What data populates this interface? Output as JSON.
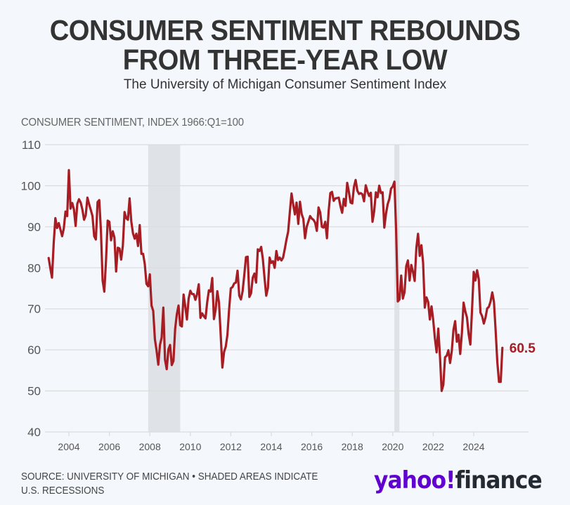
{
  "header": {
    "title_line1": "CONSUMER SENTIMENT REBOUNDS",
    "title_line2": "FROM THREE-YEAR LOW",
    "subtitle": "The University of Michigan Consumer Sentiment Index"
  },
  "footer": {
    "source_line1": "SOURCE: UNIVERSITY OF MICHIGAN • SHADED AREAS INDICATE",
    "source_line2": "U.S. RECESSIONS",
    "logo_yahoo": "yahoo",
    "logo_bang": "!",
    "logo_finance": "finance"
  },
  "colors": {
    "line": "#a61d24",
    "recession": "#dfe3e8",
    "grid": "#dcdcdc",
    "background": "#f4f7fb",
    "brand_purple": "#6001d2"
  },
  "chart_data": {
    "type": "line",
    "title": "CONSUMER SENTIMENT REBOUNDS FROM THREE-YEAR LOW",
    "subtitle": "The University of Michigan Consumer Sentiment Index",
    "ylabel": "CONSUMER SENTIMENT, INDEX 1966:Q1=100",
    "xlabel": "",
    "ylim": [
      40,
      110
    ],
    "yticks": [
      40,
      50,
      60,
      70,
      80,
      90,
      100,
      110
    ],
    "xlim": [
      2003.0,
      2025.7
    ],
    "xticks": [
      2004,
      2006,
      2008,
      2010,
      2012,
      2014,
      2016,
      2018,
      2020,
      2022,
      2024
    ],
    "grid": "horizontal",
    "start": "2003-01",
    "frequency": "monthly",
    "end_label": "60.5",
    "recessions": [
      {
        "start": 2007.92,
        "end": 2009.5
      },
      {
        "start": 2020.08,
        "end": 2020.33
      }
    ],
    "series": [
      {
        "name": "Consumer Sentiment Index",
        "values": [
          82.4,
          79.9,
          77.6,
          86.0,
          92.1,
          89.7,
          90.9,
          89.3,
          87.7,
          89.6,
          93.7,
          92.6,
          103.8,
          94.4,
          95.8,
          94.2,
          90.2,
          95.6,
          96.7,
          95.9,
          94.2,
          91.7,
          92.8,
          97.1,
          95.5,
          94.1,
          92.6,
          87.7,
          86.9,
          96.0,
          96.5,
          89.1,
          76.9,
          74.2,
          81.6,
          91.5,
          91.2,
          86.7,
          88.9,
          87.4,
          79.1,
          84.9,
          84.7,
          82.0,
          85.4,
          93.6,
          92.1,
          91.7,
          96.9,
          91.3,
          88.4,
          87.1,
          88.3,
          85.3,
          90.4,
          83.4,
          83.4,
          80.9,
          76.1,
          75.5,
          78.4,
          70.8,
          69.5,
          62.6,
          59.8,
          56.4,
          61.2,
          63.0,
          70.3,
          57.6,
          55.3,
          60.1,
          61.2,
          56.3,
          57.3,
          65.1,
          68.7,
          70.8,
          66.0,
          65.7,
          73.5,
          70.6,
          67.4,
          72.5,
          74.4,
          73.6,
          73.6,
          72.2,
          73.6,
          76.0,
          67.8,
          68.9,
          68.2,
          67.7,
          71.6,
          74.5,
          74.2,
          77.5,
          67.5,
          69.8,
          74.3,
          71.5,
          63.7,
          55.7,
          59.5,
          60.8,
          63.7,
          69.9,
          75.0,
          75.3,
          76.2,
          76.4,
          79.3,
          73.2,
          72.3,
          74.3,
          78.3,
          82.6,
          82.7,
          72.9,
          73.8,
          77.6,
          78.6,
          76.4,
          84.5,
          84.1,
          85.1,
          82.1,
          77.5,
          73.2,
          75.1,
          82.5,
          81.2,
          81.6,
          80.0,
          84.1,
          81.9,
          82.5,
          81.8,
          82.5,
          84.6,
          86.9,
          88.8,
          93.6,
          98.1,
          95.4,
          93.0,
          95.9,
          90.7,
          96.1,
          93.1,
          91.9,
          87.2,
          90.0,
          91.3,
          92.6,
          92.0,
          91.7,
          91.0,
          89.0,
          94.7,
          93.5,
          90.0,
          89.8,
          91.2,
          87.2,
          93.8,
          98.2,
          98.5,
          96.3,
          96.9,
          97.0,
          97.1,
          95.0,
          93.4,
          96.8,
          95.1,
          100.7,
          98.5,
          95.9,
          95.7,
          99.7,
          101.4,
          98.8,
          98.0,
          98.2,
          97.9,
          96.2,
          100.1,
          98.6,
          97.5,
          98.3,
          91.2,
          93.8,
          98.4,
          97.2,
          100.0,
          98.2,
          98.4,
          89.8,
          93.2,
          95.5,
          96.8,
          99.3,
          99.8,
          101.0,
          89.1,
          71.8,
          72.3,
          78.1,
          72.5,
          74.1,
          80.4,
          81.8,
          76.9,
          80.7,
          79.0,
          76.8,
          84.9,
          88.3,
          82.9,
          85.5,
          81.2,
          70.3,
          72.8,
          71.7,
          67.4,
          70.6,
          67.2,
          62.8,
          59.4,
          65.2,
          58.4,
          50.0,
          51.5,
          58.2,
          58.6,
          59.9,
          56.8,
          59.7,
          64.9,
          67.0,
          62.0,
          63.7,
          59.0,
          64.2,
          71.5,
          69.4,
          67.9,
          63.8,
          61.3,
          69.7,
          79.0,
          76.9,
          79.4,
          77.2,
          69.1,
          68.2,
          66.4,
          67.9,
          70.1,
          70.5,
          71.8,
          74.0,
          71.7,
          64.7,
          57.0,
          52.2,
          52.2,
          60.5
        ]
      }
    ]
  }
}
